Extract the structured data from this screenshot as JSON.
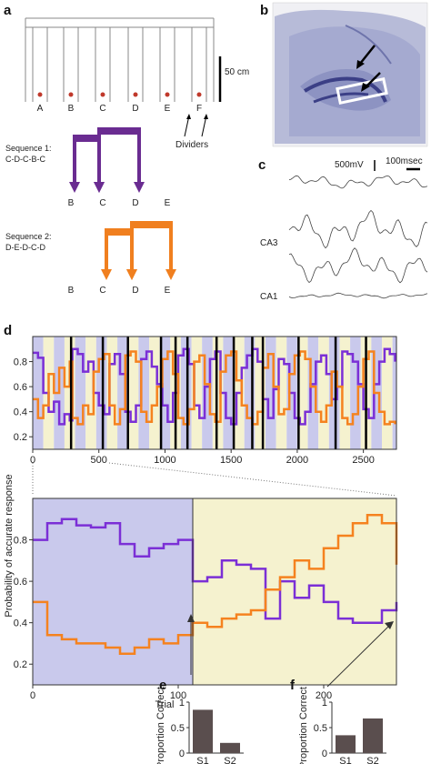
{
  "panels": {
    "a": {
      "letter": "a",
      "scale_label": "50 cm",
      "arm_labels": [
        "A",
        "B",
        "C",
        "D",
        "E",
        "F"
      ],
      "dividers_label": "Dividers",
      "sequence1": {
        "title": "Sequence 1:",
        "order": "C-D-C-B-C",
        "arm_labels": [
          "B",
          "C",
          "D",
          "E"
        ],
        "color": "#6a2c91"
      },
      "sequence2": {
        "title": "Sequence 2:",
        "order": "D-E-D-C-D",
        "arm_labels": [
          "B",
          "C",
          "D",
          "E"
        ],
        "color": "#f07f1f"
      }
    },
    "b": {
      "letter": "b"
    },
    "c": {
      "letter": "c",
      "scale_voltage": "500mV",
      "scale_time": "100msec",
      "trace_labels": [
        "CA3",
        "CA1"
      ]
    },
    "d": {
      "letter": "d",
      "ylabel": "Probability of accurate response",
      "inset_xlabel": "Trial"
    },
    "e": {
      "letter": "e"
    },
    "f": {
      "letter": "f"
    }
  },
  "colors": {
    "seq1": "#7b2fd6",
    "seq2": "#f5821f",
    "bg_blue": "#c9c9ec",
    "bg_yellow": "#f5f2cf",
    "bars": "#5a4e4e"
  },
  "chart_data": [
    {
      "id": "d-main",
      "type": "line",
      "xlim": [
        0,
        2750
      ],
      "ylim": [
        0.1,
        1.0
      ],
      "xticks": [
        "0",
        "500",
        "1000",
        "1500",
        "2000",
        "2500"
      ],
      "yticks": [
        "0.2",
        "0.4",
        "0.6",
        "0.8"
      ],
      "session_boundaries": [
        290,
        530,
        720,
        970,
        1080,
        1170,
        1390,
        1520,
        1660,
        1740,
        2010,
        2290,
        2520
      ],
      "block_backgrounds": [
        "blue",
        "yellow",
        "blue",
        "yellow",
        "blue",
        "yellow",
        "blue",
        "yellow",
        "blue",
        "yellow",
        "blue",
        "yellow",
        "blue",
        "yellow",
        "blue",
        "yellow",
        "blue",
        "yellow",
        "blue",
        "yellow",
        "blue",
        "yellow",
        "blue",
        "yellow",
        "blue",
        "yellow",
        "blue",
        "yellow",
        "blue",
        "yellow",
        "blue",
        "yellow",
        "blue",
        "yellow"
      ],
      "series": [
        {
          "key": "seq1",
          "x": [
            0,
            40,
            80,
            120,
            160,
            200,
            240,
            280,
            300,
            340,
            380,
            420,
            460,
            500,
            540,
            580,
            620,
            660,
            700,
            740,
            780,
            820,
            860,
            900,
            940,
            980,
            1020,
            1060,
            1100,
            1140,
            1180,
            1220,
            1260,
            1300,
            1340,
            1380,
            1420,
            1460,
            1500,
            1540,
            1580,
            1620,
            1660,
            1700,
            1740,
            1780,
            1820,
            1860,
            1900,
            1940,
            1980,
            2020,
            2060,
            2100,
            2140,
            2180,
            2220,
            2260,
            2300,
            2340,
            2380,
            2420,
            2460,
            2500,
            2540,
            2580,
            2620,
            2660,
            2700,
            2740
          ],
          "values": [
            0.87,
            0.83,
            0.55,
            0.4,
            0.48,
            0.3,
            0.38,
            0.33,
            0.9,
            0.86,
            0.72,
            0.8,
            0.55,
            0.45,
            0.38,
            0.78,
            0.86,
            0.7,
            0.4,
            0.32,
            0.45,
            0.82,
            0.88,
            0.76,
            0.62,
            0.45,
            0.32,
            0.55,
            0.85,
            0.9,
            0.78,
            0.45,
            0.35,
            0.6,
            0.82,
            0.88,
            0.55,
            0.35,
            0.3,
            0.55,
            0.75,
            0.85,
            0.9,
            0.8,
            0.5,
            0.35,
            0.58,
            0.82,
            0.78,
            0.55,
            0.35,
            0.3,
            0.4,
            0.62,
            0.8,
            0.85,
            0.7,
            0.5,
            0.6,
            0.88,
            0.86,
            0.8,
            0.62,
            0.42,
            0.35,
            0.62,
            0.8,
            0.9,
            0.86,
            0.8
          ]
        },
        {
          "key": "seq2",
          "x": [
            0,
            40,
            80,
            120,
            160,
            200,
            240,
            280,
            300,
            340,
            380,
            420,
            460,
            500,
            540,
            580,
            620,
            660,
            700,
            740,
            780,
            820,
            860,
            900,
            940,
            980,
            1020,
            1060,
            1100,
            1140,
            1180,
            1220,
            1260,
            1300,
            1340,
            1380,
            1420,
            1460,
            1500,
            1540,
            1580,
            1620,
            1660,
            1700,
            1740,
            1780,
            1820,
            1860,
            1900,
            1940,
            1980,
            2020,
            2060,
            2100,
            2140,
            2180,
            2220,
            2260,
            2300,
            2340,
            2380,
            2420,
            2460,
            2500,
            2540,
            2580,
            2620,
            2660,
            2700,
            2740
          ],
          "values": [
            0.5,
            0.35,
            0.45,
            0.7,
            0.55,
            0.75,
            0.6,
            0.8,
            0.35,
            0.3,
            0.45,
            0.38,
            0.72,
            0.82,
            0.86,
            0.45,
            0.3,
            0.42,
            0.85,
            0.88,
            0.8,
            0.4,
            0.32,
            0.45,
            0.6,
            0.82,
            0.88,
            0.7,
            0.35,
            0.3,
            0.42,
            0.8,
            0.85,
            0.62,
            0.38,
            0.32,
            0.72,
            0.85,
            0.88,
            0.65,
            0.45,
            0.35,
            0.3,
            0.4,
            0.75,
            0.86,
            0.6,
            0.38,
            0.42,
            0.7,
            0.85,
            0.88,
            0.82,
            0.6,
            0.4,
            0.32,
            0.45,
            0.72,
            0.6,
            0.35,
            0.3,
            0.38,
            0.6,
            0.82,
            0.88,
            0.55,
            0.4,
            0.3,
            0.32,
            0.3
          ]
        }
      ]
    },
    {
      "id": "d-inset",
      "type": "line",
      "xlim": [
        0,
        250
      ],
      "ylim": [
        0.1,
        1.0
      ],
      "xticks": [
        "0",
        "100",
        "200"
      ],
      "yticks": [
        "0.2",
        "0.4",
        "0.6",
        "0.8"
      ],
      "boundary": 110,
      "series": [
        {
          "key": "seq1",
          "x": [
            0,
            10,
            20,
            30,
            40,
            50,
            60,
            70,
            80,
            90,
            100,
            110,
            120,
            130,
            140,
            150,
            160,
            170,
            180,
            190,
            200,
            210,
            220,
            230,
            240,
            250
          ],
          "values": [
            0.8,
            0.88,
            0.9,
            0.87,
            0.86,
            0.88,
            0.78,
            0.72,
            0.76,
            0.78,
            0.8,
            0.6,
            0.62,
            0.7,
            0.68,
            0.66,
            0.42,
            0.6,
            0.52,
            0.58,
            0.5,
            0.42,
            0.4,
            0.4,
            0.46,
            0.5
          ]
        },
        {
          "key": "seq2",
          "x": [
            0,
            10,
            20,
            30,
            40,
            50,
            60,
            70,
            80,
            90,
            100,
            110,
            120,
            130,
            140,
            150,
            160,
            170,
            180,
            190,
            200,
            210,
            220,
            230,
            240,
            250
          ],
          "values": [
            0.5,
            0.34,
            0.32,
            0.3,
            0.3,
            0.28,
            0.25,
            0.28,
            0.32,
            0.3,
            0.34,
            0.4,
            0.38,
            0.42,
            0.44,
            0.46,
            0.56,
            0.62,
            0.7,
            0.66,
            0.76,
            0.82,
            0.88,
            0.92,
            0.88,
            0.68
          ]
        }
      ]
    },
    {
      "id": "e-bars",
      "type": "bar",
      "ylabel": "Proportion Correct",
      "categories": [
        "S1",
        "S2"
      ],
      "values": [
        0.85,
        0.2
      ],
      "ylim": [
        0,
        1
      ],
      "yticks": [
        "0",
        "0.5",
        "1"
      ]
    },
    {
      "id": "f-bars",
      "type": "bar",
      "ylabel": "Proportion Correct",
      "categories": [
        "S1",
        "S2"
      ],
      "values": [
        0.35,
        0.68
      ],
      "ylim": [
        0,
        1
      ],
      "yticks": [
        "0",
        "0.5",
        "1"
      ]
    }
  ]
}
